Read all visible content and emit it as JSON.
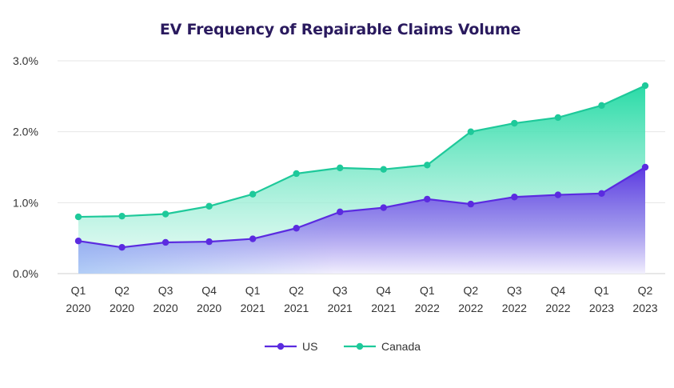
{
  "chart_data": {
    "type": "area",
    "title": "EV Frequency of Repairable Claims Volume",
    "xlabel": "",
    "ylabel": "",
    "categories": [
      [
        "Q1",
        "2020"
      ],
      [
        "Q2",
        "2020"
      ],
      [
        "Q3",
        "2020"
      ],
      [
        "Q4",
        "2020"
      ],
      [
        "Q1",
        "2021"
      ],
      [
        "Q2",
        "2021"
      ],
      [
        "Q3",
        "2021"
      ],
      [
        "Q4",
        "2021"
      ],
      [
        "Q1",
        "2022"
      ],
      [
        "Q2",
        "2022"
      ],
      [
        "Q3",
        "2022"
      ],
      [
        "Q4",
        "2022"
      ],
      [
        "Q1",
        "2023"
      ],
      [
        "Q2",
        "2023"
      ]
    ],
    "yticks": [
      "0.0%",
      "1.0%",
      "2.0%",
      "3.0%"
    ],
    "ylim": [
      0,
      3.0
    ],
    "grid": true,
    "legend_position": "bottom",
    "series": [
      {
        "name": "US",
        "color": "#5b2be0",
        "values": [
          0.46,
          0.37,
          0.44,
          0.45,
          0.49,
          0.64,
          0.87,
          0.93,
          1.05,
          0.98,
          1.08,
          1.11,
          1.13,
          1.5
        ]
      },
      {
        "name": "Canada",
        "color": "#1ec99a",
        "values": [
          0.8,
          0.81,
          0.84,
          0.95,
          1.12,
          1.41,
          1.49,
          1.47,
          1.53,
          2.0,
          2.12,
          2.2,
          2.37,
          2.65
        ]
      }
    ]
  }
}
